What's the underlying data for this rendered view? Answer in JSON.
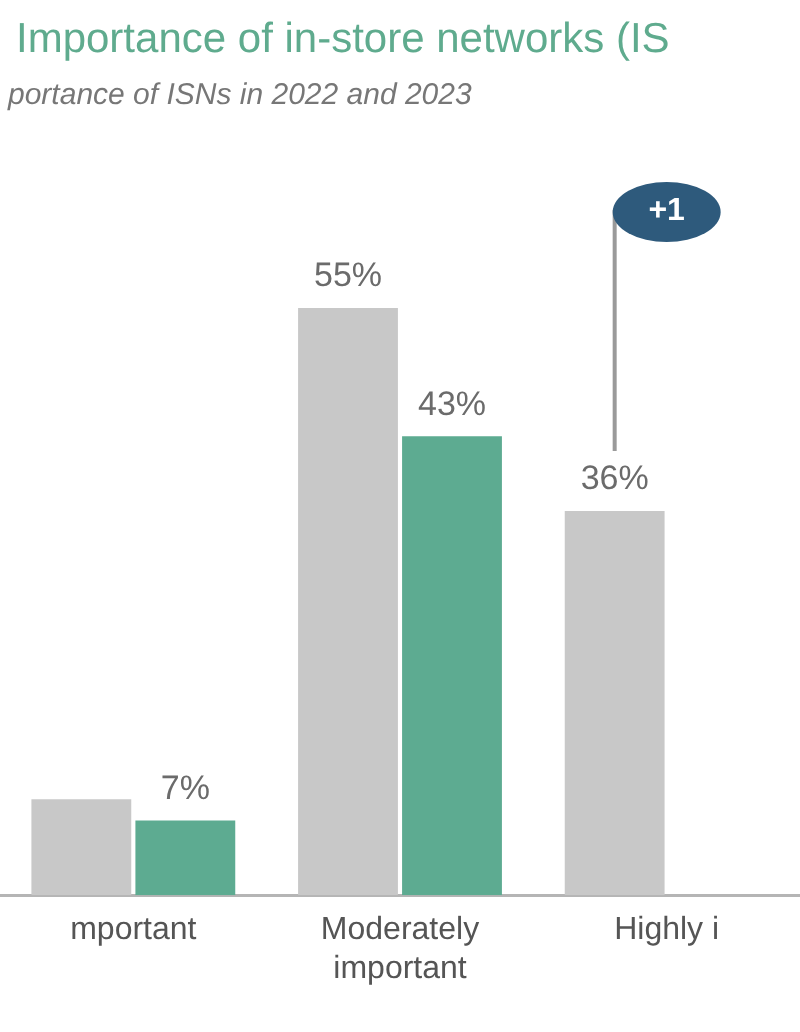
{
  "chart_data": {
    "type": "bar",
    "title": "Importance of in-store networks (IS",
    "subtitle": "portance of ISNs in 2022 and 2023",
    "categories": [
      "mportant",
      "Moderately important",
      "Highly i"
    ],
    "series": [
      {
        "color": "#c8c8c8",
        "values": [
          9,
          55,
          36
        ],
        "value_labels": [
          null,
          "55%",
          "36%"
        ]
      },
      {
        "color": "#5dab91",
        "values": [
          7,
          43,
          null
        ],
        "value_labels": [
          "7%",
          "43%",
          null
        ]
      }
    ],
    "annotations": [
      "+1"
    ]
  }
}
